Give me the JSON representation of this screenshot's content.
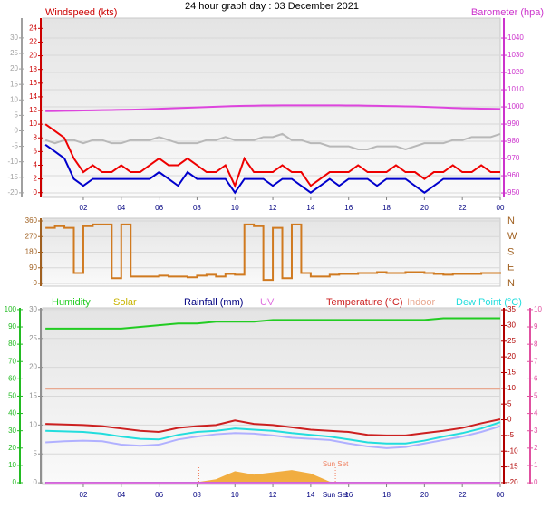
{
  "title": "24 hour graph day : 03 December 2021",
  "chart_data": [
    {
      "type": "line",
      "x": [
        0,
        0.5,
        1,
        1.5,
        2,
        2.5,
        3,
        3.5,
        4,
        4.5,
        5,
        5.5,
        6,
        6.5,
        7,
        7.5,
        8,
        8.5,
        9,
        9.5,
        10,
        10.5,
        11,
        11.5,
        12,
        12.5,
        13,
        13.5,
        14,
        14.5,
        15,
        15.5,
        16,
        16.5,
        17,
        17.5,
        18,
        18.5,
        19,
        19.5,
        20,
        20.5,
        21,
        21.5,
        22,
        22.5,
        23,
        23.5,
        24
      ],
      "xlim": [
        -0.15,
        24
      ],
      "xticks": [
        {
          "value": 2,
          "label": "02"
        },
        {
          "value": 4,
          "label": "04"
        },
        {
          "value": 6,
          "label": "06"
        },
        {
          "value": 8,
          "label": "08"
        },
        10,
        12,
        14,
        16,
        18,
        20,
        22,
        {
          "value": 24,
          "label": "00"
        }
      ],
      "axes": [
        {
          "lim": [
            -21.5,
            36.4
          ],
          "ticks": [
            30,
            25,
            20,
            15,
            10,
            5,
            0,
            -5,
            -10,
            -15,
            -20
          ],
          "color": "#a0a0a0"
        },
        {
          "lim": [
            -0.7,
            25.5
          ],
          "ticks": [
            0,
            2,
            4,
            6,
            8,
            10,
            12,
            14,
            16,
            18,
            20,
            22,
            24
          ],
          "color": "#cc0000",
          "label": "Windspeed (kts)"
        },
        {
          "lim": [
            947.4,
            1051.6
          ],
          "ticks": [
            950,
            960,
            970,
            980,
            990,
            1000,
            1010,
            1020,
            1030,
            1040
          ],
          "color": "#cc33cc",
          "label": "Barometer (hpa)",
          "grid": true
        }
      ],
      "series": [
        {
          "color": "#b8b8b8",
          "axis": 0,
          "values": [
            -3,
            -4,
            -3,
            -3,
            -4,
            -3,
            -3,
            -4,
            -4,
            -3,
            -3,
            -3,
            -2,
            -3,
            -4,
            -4,
            -4,
            -3,
            -3,
            -2,
            -3,
            -3,
            -3,
            -2,
            -2,
            -1,
            -3,
            -3,
            -4,
            -4,
            -5,
            -5,
            -5,
            -6,
            -6,
            -5,
            -5,
            -5,
            -6,
            -5,
            -4,
            -4,
            -4,
            -3,
            -3,
            -2,
            -2,
            -2,
            -1
          ]
        },
        {
          "color": "#ee0000",
          "axis": 1,
          "values": [
            10,
            9,
            8,
            5,
            3,
            4,
            3,
            3,
            4,
            3,
            3,
            4,
            5,
            4,
            4,
            5,
            4,
            3,
            3,
            4,
            1,
            5,
            3,
            3,
            3,
            4,
            3,
            3,
            1,
            2,
            3,
            3,
            3,
            4,
            3,
            3,
            3,
            4,
            3,
            3,
            2,
            3,
            3,
            4,
            3,
            3,
            4,
            3,
            3
          ]
        },
        {
          "color": "#0000cc",
          "axis": 1,
          "values": [
            7,
            6,
            5,
            2,
            1,
            2,
            2,
            2,
            2,
            2,
            2,
            2,
            3,
            2,
            1,
            3,
            2,
            2,
            2,
            2,
            0,
            2,
            2,
            2,
            1,
            2,
            2,
            1,
            0,
            1,
            2,
            1,
            2,
            2,
            2,
            1,
            2,
            2,
            2,
            1,
            0,
            1,
            2,
            2,
            2,
            2,
            2,
            2,
            2
          ]
        },
        {
          "color": "#dd44dd",
          "axis": 2,
          "values": [
            997.5,
            997.6,
            997.7,
            997.8,
            997.9,
            998,
            998.1,
            998.2,
            998.3,
            998.4,
            998.5,
            998.7,
            998.9,
            999.1,
            999.3,
            999.5,
            999.7,
            999.9,
            1000.1,
            1000.3,
            1000.5,
            1000.6,
            1000.7,
            1000.8,
            1000.8,
            1000.9,
            1000.9,
            1000.9,
            1000.9,
            1000.9,
            1000.9,
            1000.9,
            1000.8,
            1000.8,
            1000.7,
            1000.6,
            1000.5,
            1000.4,
            1000.3,
            1000.2,
            1000,
            999.8,
            999.6,
            999.4,
            999.2,
            999.1,
            999,
            998.9,
            998.8
          ]
        }
      ]
    },
    {
      "type": "line",
      "x": [
        0,
        0.5,
        1,
        1.5,
        2,
        2.5,
        3,
        3.5,
        4,
        4.5,
        5,
        5.5,
        6,
        6.5,
        7,
        7.5,
        8,
        8.5,
        9,
        9.5,
        10,
        10.5,
        11,
        11.5,
        12,
        12.5,
        13,
        13.5,
        14,
        14.5,
        15,
        15.5,
        16,
        16.5,
        17,
        17.5,
        18,
        18.5,
        19,
        19.5,
        20,
        20.5,
        21,
        21.5,
        22,
        22.5,
        23,
        23.5,
        24
      ],
      "xlim": [
        -0.15,
        24
      ],
      "axes": [
        {
          "lim": [
            -15.6,
            375.6
          ],
          "ticks": [
            0,
            90,
            180,
            270,
            360
          ],
          "color": "#a06020",
          "grid": true
        },
        {
          "lim": [
            -15.6,
            375.6
          ],
          "ticks": [
            {
              "value": 0,
              "label": "N"
            },
            {
              "value": 90,
              "label": "E"
            },
            {
              "value": 180,
              "label": "S"
            },
            {
              "value": 270,
              "label": "W"
            },
            {
              "value": 360,
              "label": "N"
            }
          ],
          "color": "#a06020"
        }
      ],
      "series": [
        {
          "color": "#d07a20",
          "axis": 0,
          "step": true,
          "values": [
            320,
            330,
            320,
            60,
            330,
            340,
            340,
            30,
            340,
            40,
            40,
            40,
            45,
            40,
            40,
            35,
            45,
            50,
            40,
            55,
            50,
            340,
            330,
            20,
            320,
            30,
            340,
            60,
            40,
            40,
            50,
            55,
            55,
            60,
            60,
            65,
            60,
            60,
            65,
            65,
            60,
            55,
            50,
            55,
            55,
            55,
            60,
            60,
            55
          ]
        }
      ]
    },
    {
      "type": "line",
      "x": [
        0,
        1,
        2,
        3,
        4,
        5,
        6,
        7,
        8,
        9,
        10,
        11,
        12,
        13,
        14,
        15,
        16,
        17,
        18,
        19,
        20,
        21,
        22,
        23,
        24
      ],
      "xlim": [
        -0.15,
        24
      ],
      "xticks": [
        {
          "value": 2,
          "label": "02"
        },
        {
          "value": 4,
          "label": "04"
        },
        {
          "value": 6,
          "label": "06"
        },
        {
          "value": 8,
          "label": "08"
        },
        10,
        12,
        14,
        16,
        18,
        20,
        22,
        {
          "value": 24,
          "label": "00"
        }
      ],
      "events": [
        {
          "x": 8.1
        },
        {
          "x": 15.3,
          "label": "Sun Set"
        }
      ],
      "axes": [
        {
          "lim": [
            -1.05,
            101
          ],
          "ticks": [
            0,
            10,
            20,
            30,
            40,
            50,
            60,
            70,
            80,
            90,
            100
          ],
          "color": "#22bb22"
        },
        {
          "lim": [
            -0.3,
            30.3
          ],
          "ticks": [
            0,
            5,
            10,
            15,
            20,
            25,
            30
          ],
          "color": "#909090",
          "grid": true
        },
        {
          "lim": [
            -20.6,
            35.6
          ],
          "ticks": [
            35,
            30,
            25,
            20,
            15,
            10,
            5,
            0,
            -5,
            -10,
            -15,
            -20
          ],
          "color": "#b00000"
        },
        {
          "lim": [
            -0.1,
            10.1
          ],
          "ticks": [
            0,
            1,
            2,
            3,
            4,
            5,
            6,
            7,
            8,
            9,
            10
          ],
          "color": "#e050a0"
        }
      ],
      "series": [
        {
          "name": "Humidity",
          "color": "#22cc22",
          "axis": 0,
          "values": [
            89,
            89,
            89,
            89,
            89,
            90,
            91,
            92,
            92,
            93,
            93,
            93,
            94,
            94,
            94,
            94,
            94,
            94,
            94,
            94,
            94,
            95,
            95,
            95,
            95
          ]
        },
        {
          "name": "Solar",
          "color": "#c8b400",
          "fill": "#f0a020",
          "axis": 1,
          "values": [
            0,
            0,
            0,
            0,
            0,
            0,
            0,
            0,
            0.1,
            0.6,
            2,
            1.4,
            1.8,
            2.2,
            1.6,
            0.2,
            0,
            0,
            0,
            0,
            0,
            0,
            0,
            0,
            0
          ]
        },
        {
          "name": "Rainfall (mm)",
          "color": "#000080",
          "axis": 1,
          "values": [
            0,
            0,
            0,
            0,
            0,
            0,
            0,
            0,
            0,
            0,
            0,
            0,
            0,
            0,
            0,
            0,
            0,
            0,
            0,
            0,
            0,
            0,
            0,
            0,
            0
          ]
        },
        {
          "name": "UV",
          "color": "#e070e0",
          "axis": 3,
          "values": [
            0,
            0,
            0,
            0,
            0,
            0,
            0,
            0,
            0,
            0,
            0,
            0,
            0,
            0,
            0,
            0,
            0,
            0,
            0,
            0,
            0,
            0,
            0,
            0,
            0
          ]
        },
        {
          "color": "#b0b0ff",
          "axis": 1,
          "values": [
            7,
            7.2,
            7.3,
            7.2,
            6.6,
            6.4,
            6.6,
            7.5,
            8,
            8.4,
            8.6,
            8.5,
            8.2,
            7.8,
            7.6,
            7.4,
            6.8,
            6.3,
            6,
            6.2,
            6.8,
            7.4,
            8,
            8.8,
            9.8
          ]
        },
        {
          "name": "Temperature (°C)",
          "color": "#cc2020",
          "axis": 1,
          "values": [
            10.2,
            10.1,
            10,
            9.8,
            9.4,
            9,
            8.8,
            9.5,
            9.8,
            10,
            10.8,
            10.2,
            10,
            9.6,
            9.2,
            9,
            8.8,
            8.3,
            8.2,
            8.2,
            8.6,
            9,
            9.5,
            10.3,
            11
          ]
        },
        {
          "name": "Indoor",
          "color": "#e8a890",
          "axis": 1,
          "values": [
            16.3,
            16.3,
            16.3,
            16.3,
            16.3,
            16.3,
            16.3,
            16.3,
            16.3,
            16.3,
            16.3,
            16.3,
            16.3,
            16.3,
            16.3,
            16.3,
            16.3,
            16.3,
            16.3,
            16.3,
            16.3,
            16.3,
            16.3,
            16.3,
            16.3
          ]
        },
        {
          "name": "Dew Point (°C)",
          "color": "#22dddd",
          "axis": 1,
          "values": [
            9,
            8.9,
            8.8,
            8.5,
            8,
            7.6,
            7.5,
            8.3,
            8.8,
            9,
            9.4,
            9.2,
            9,
            8.6,
            8.3,
            8,
            7.5,
            7,
            6.8,
            6.8,
            7.3,
            8,
            8.6,
            9.4,
            10.5
          ]
        }
      ]
    }
  ]
}
